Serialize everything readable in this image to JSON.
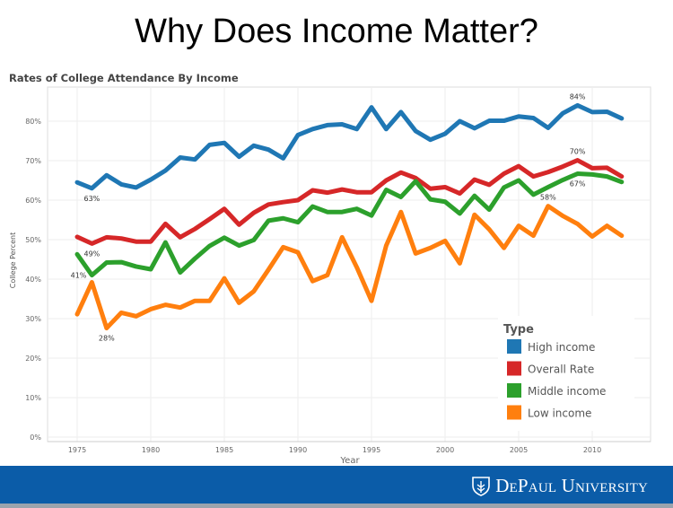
{
  "slide_title": "Why Does Income Matter?",
  "footer": {
    "logo_text": "DePaulUniversity"
  },
  "chart_data": {
    "type": "line",
    "title": "Rates of College Attendance By Income",
    "xlabel": "Year",
    "ylabel": "College Percent",
    "ylim": [
      0,
      88
    ],
    "xlim": [
      1973,
      2014
    ],
    "yticks": [
      0,
      10,
      20,
      30,
      40,
      50,
      60,
      70,
      80
    ],
    "ytick_labels": [
      "0%",
      "10%",
      "20%",
      "30%",
      "40%",
      "50%",
      "60%",
      "70%",
      "80%"
    ],
    "xticks": [
      1975,
      1980,
      1985,
      1990,
      1995,
      2000,
      2005,
      2010
    ],
    "xtick_labels": [
      "1975",
      "1980",
      "1985",
      "1990",
      "1995",
      "2000",
      "2005",
      "2010"
    ],
    "grid": true,
    "legend": {
      "title": "Type",
      "placement": "bottom-right"
    },
    "x": [
      1975,
      1976,
      1977,
      1978,
      1979,
      1980,
      1981,
      1982,
      1983,
      1984,
      1985,
      1986,
      1987,
      1988,
      1989,
      1990,
      1991,
      1992,
      1993,
      1994,
      1995,
      1996,
      1997,
      1998,
      1999,
      2000,
      2001,
      2002,
      2003,
      2004,
      2005,
      2006,
      2007,
      2008,
      2009,
      2010,
      2011,
      2012
    ],
    "series": [
      {
        "name": "High income",
        "color": "#1f77b4",
        "values": [
          64.5,
          63,
          66.3,
          64,
          63.2,
          65.2,
          67.5,
          70.8,
          70.3,
          74,
          74.5,
          71,
          73.8,
          72.8,
          70.6,
          76.5,
          78,
          79,
          79.2,
          78,
          83.5,
          78,
          82.3,
          77.5,
          75.3,
          76.8,
          80,
          78.2,
          80.1,
          80.1,
          81.2,
          80.8,
          78.3,
          82,
          84,
          82.3,
          82.4,
          80.7
        ]
      },
      {
        "name": "Overall Rate",
        "color": "#d62728",
        "values": [
          50.7,
          49,
          50.6,
          50.3,
          49.5,
          49.5,
          54,
          50.6,
          52.7,
          55.2,
          57.8,
          53.8,
          56.8,
          58.9,
          59.5,
          60,
          62.5,
          61.9,
          62.7,
          62,
          62,
          65,
          67,
          65.6,
          62.9,
          63.3,
          61.7,
          65.2,
          63.9,
          66.7,
          68.6,
          66,
          67.1,
          68.5,
          70.1,
          68.1,
          68.2,
          66
        ]
      },
      {
        "name": "Middle income",
        "color": "#2ca02c",
        "values": [
          46.3,
          41,
          44.2,
          44.3,
          43.2,
          42.5,
          49.3,
          41.7,
          45.2,
          48.4,
          50.5,
          48.5,
          49.9,
          54.8,
          55.4,
          54.4,
          58.4,
          57,
          57,
          57.8,
          56.1,
          62.6,
          60.8,
          64.8,
          60.2,
          59.6,
          56.6,
          61.1,
          57.6,
          63.2,
          65,
          61.4,
          63.3,
          65.1,
          66.7,
          66.5,
          66,
          64.6
        ]
      },
      {
        "name": "Low income",
        "color": "#ff7f0e",
        "values": [
          31.1,
          39.2,
          27.6,
          31.5,
          30.6,
          32.4,
          33.5,
          32.8,
          34.5,
          34.5,
          40.2,
          34,
          36.9,
          42.4,
          48.1,
          46.8,
          39.5,
          41,
          50.6,
          43,
          34.5,
          48.5,
          57,
          46.5,
          47.9,
          49.7,
          44,
          56.3,
          52.6,
          47.9,
          53.5,
          51,
          58.5,
          56,
          54,
          50.8,
          53.5,
          51
        ]
      }
    ],
    "annotations": [
      {
        "series": 0,
        "year": 1976,
        "text": "63%",
        "pos": "below"
      },
      {
        "series": 1,
        "year": 1976,
        "text": "49%",
        "pos": "below"
      },
      {
        "series": 2,
        "year": 1976,
        "text": "41%",
        "pos": "left"
      },
      {
        "series": 3,
        "year": 1977,
        "text": "28%",
        "pos": "below"
      },
      {
        "series": 0,
        "year": 2009,
        "text": "84%",
        "pos": "above"
      },
      {
        "series": 1,
        "year": 2009,
        "text": "70%",
        "pos": "above"
      },
      {
        "series": 2,
        "year": 2009,
        "text": "67%",
        "pos": "below"
      },
      {
        "series": 3,
        "year": 2007,
        "text": "58%",
        "pos": "above"
      }
    ]
  }
}
